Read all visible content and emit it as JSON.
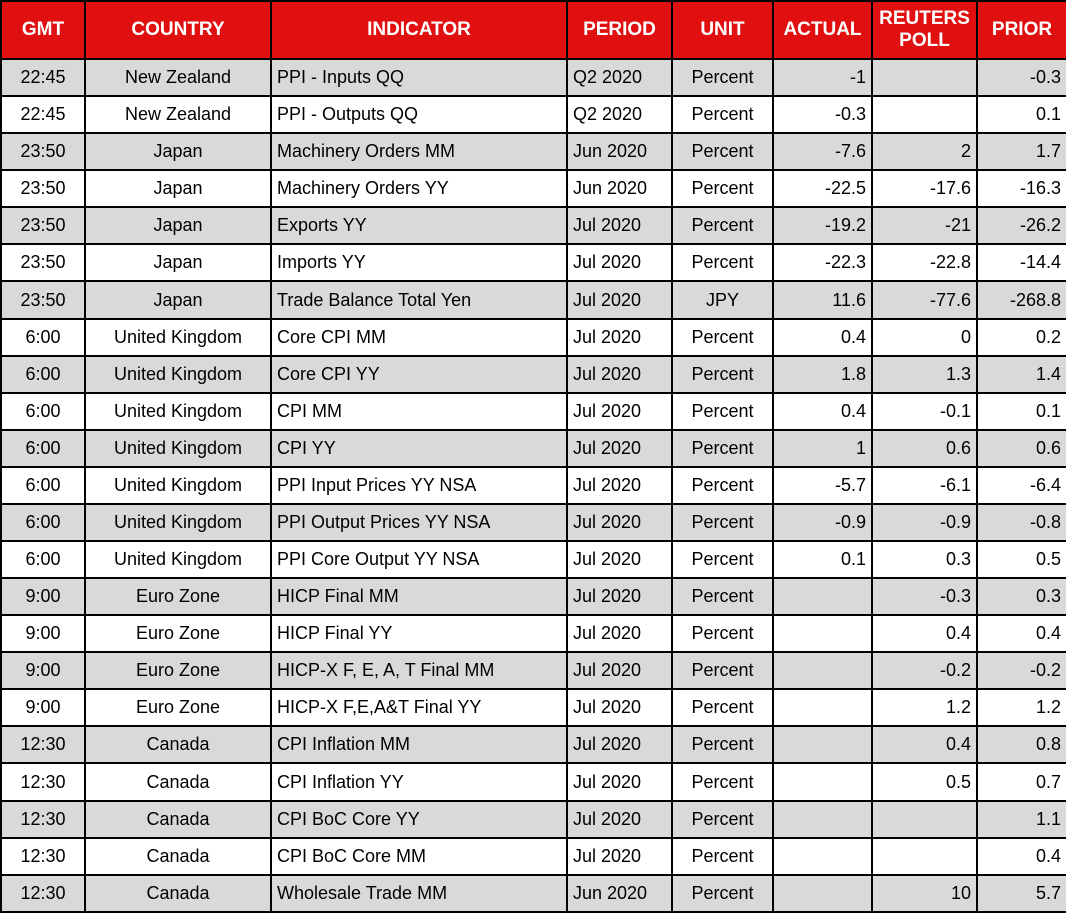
{
  "colors": {
    "header_bg": "#e01010",
    "header_text": "#ffffff",
    "row_alt_bg": "#d9d9d9",
    "row_bg": "#ffffff",
    "border": "#000000",
    "cell_text": "#000000"
  },
  "table": {
    "columns": [
      {
        "key": "gmt",
        "label": "GMT"
      },
      {
        "key": "country",
        "label": "COUNTRY"
      },
      {
        "key": "indicator",
        "label": "INDICATOR"
      },
      {
        "key": "period",
        "label": "PERIOD"
      },
      {
        "key": "unit",
        "label": "UNIT"
      },
      {
        "key": "actual",
        "label": "ACTUAL"
      },
      {
        "key": "poll",
        "label": "REUTERS POLL"
      },
      {
        "key": "prior",
        "label": "PRIOR"
      }
    ],
    "rows": [
      {
        "gmt": "22:45",
        "country": "New Zealand",
        "indicator": "PPI - Inputs QQ",
        "period": "Q2 2020",
        "unit": "Percent",
        "actual": "-1",
        "poll": "",
        "prior": "-0.3"
      },
      {
        "gmt": "22:45",
        "country": "New Zealand",
        "indicator": "PPI - Outputs QQ",
        "period": "Q2 2020",
        "unit": "Percent",
        "actual": "-0.3",
        "poll": "",
        "prior": "0.1"
      },
      {
        "gmt": "23:50",
        "country": "Japan",
        "indicator": "Machinery Orders MM",
        "period": "Jun 2020",
        "unit": "Percent",
        "actual": "-7.6",
        "poll": "2",
        "prior": "1.7"
      },
      {
        "gmt": "23:50",
        "country": "Japan",
        "indicator": "Machinery Orders YY",
        "period": "Jun 2020",
        "unit": "Percent",
        "actual": "-22.5",
        "poll": "-17.6",
        "prior": "-16.3"
      },
      {
        "gmt": "23:50",
        "country": "Japan",
        "indicator": "Exports YY",
        "period": "Jul 2020",
        "unit": "Percent",
        "actual": "-19.2",
        "poll": "-21",
        "prior": "-26.2"
      },
      {
        "gmt": "23:50",
        "country": "Japan",
        "indicator": "Imports YY",
        "period": "Jul 2020",
        "unit": "Percent",
        "actual": "-22.3",
        "poll": "-22.8",
        "prior": "-14.4"
      },
      {
        "gmt": "23:50",
        "country": "Japan",
        "indicator": "Trade Balance Total Yen",
        "period": "Jul 2020",
        "unit": "JPY",
        "actual": "11.6",
        "poll": "-77.6",
        "prior": "-268.8"
      },
      {
        "gmt": "6:00",
        "country": "United Kingdom",
        "indicator": "Core CPI MM",
        "period": "Jul 2020",
        "unit": "Percent",
        "actual": "0.4",
        "poll": "0",
        "prior": "0.2"
      },
      {
        "gmt": "6:00",
        "country": "United Kingdom",
        "indicator": "Core CPI YY",
        "period": "Jul 2020",
        "unit": "Percent",
        "actual": "1.8",
        "poll": "1.3",
        "prior": "1.4"
      },
      {
        "gmt": "6:00",
        "country": "United Kingdom",
        "indicator": "CPI MM",
        "period": "Jul 2020",
        "unit": "Percent",
        "actual": "0.4",
        "poll": "-0.1",
        "prior": "0.1"
      },
      {
        "gmt": "6:00",
        "country": "United Kingdom",
        "indicator": "CPI YY",
        "period": "Jul 2020",
        "unit": "Percent",
        "actual": "1",
        "poll": "0.6",
        "prior": "0.6"
      },
      {
        "gmt": "6:00",
        "country": "United Kingdom",
        "indicator": "PPI Input Prices YY NSA",
        "period": "Jul 2020",
        "unit": "Percent",
        "actual": "-5.7",
        "poll": "-6.1",
        "prior": "-6.4"
      },
      {
        "gmt": "6:00",
        "country": "United Kingdom",
        "indicator": "PPI Output Prices YY NSA",
        "period": "Jul 2020",
        "unit": "Percent",
        "actual": "-0.9",
        "poll": "-0.9",
        "prior": "-0.8"
      },
      {
        "gmt": "6:00",
        "country": "United Kingdom",
        "indicator": "PPI Core Output YY NSA",
        "period": "Jul 2020",
        "unit": "Percent",
        "actual": "0.1",
        "poll": "0.3",
        "prior": "0.5"
      },
      {
        "gmt": "9:00",
        "country": "Euro Zone",
        "indicator": "HICP Final MM",
        "period": "Jul 2020",
        "unit": "Percent",
        "actual": "",
        "poll": "-0.3",
        "prior": "0.3"
      },
      {
        "gmt": "9:00",
        "country": "Euro Zone",
        "indicator": "HICP Final YY",
        "period": "Jul 2020",
        "unit": "Percent",
        "actual": "",
        "poll": "0.4",
        "prior": "0.4"
      },
      {
        "gmt": "9:00",
        "country": "Euro Zone",
        "indicator": "HICP-X F, E, A, T Final MM",
        "period": "Jul 2020",
        "unit": "Percent",
        "actual": "",
        "poll": "-0.2",
        "prior": "-0.2"
      },
      {
        "gmt": "9:00",
        "country": "Euro Zone",
        "indicator": "HICP-X F,E,A&T Final YY",
        "period": "Jul 2020",
        "unit": "Percent",
        "actual": "",
        "poll": "1.2",
        "prior": "1.2"
      },
      {
        "gmt": "12:30",
        "country": "Canada",
        "indicator": "CPI Inflation MM",
        "period": "Jul 2020",
        "unit": "Percent",
        "actual": "",
        "poll": "0.4",
        "prior": "0.8"
      },
      {
        "gmt": "12:30",
        "country": "Canada",
        "indicator": "CPI Inflation YY",
        "period": "Jul 2020",
        "unit": "Percent",
        "actual": "",
        "poll": "0.5",
        "prior": "0.7"
      },
      {
        "gmt": "12:30",
        "country": "Canada",
        "indicator": "CPI BoC Core YY",
        "period": "Jul 2020",
        "unit": "Percent",
        "actual": "",
        "poll": "",
        "prior": "1.1"
      },
      {
        "gmt": "12:30",
        "country": "Canada",
        "indicator": "CPI BoC Core MM",
        "period": "Jul 2020",
        "unit": "Percent",
        "actual": "",
        "poll": "",
        "prior": "0.4"
      },
      {
        "gmt": "12:30",
        "country": "Canada",
        "indicator": "Wholesale Trade MM",
        "period": "Jun 2020",
        "unit": "Percent",
        "actual": "",
        "poll": "10",
        "prior": "5.7"
      }
    ]
  }
}
